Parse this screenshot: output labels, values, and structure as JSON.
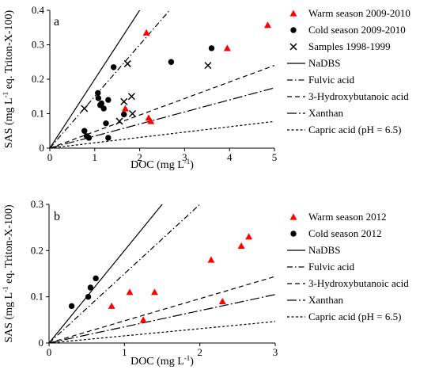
{
  "chart_data": [
    {
      "panel": "a",
      "type": "scatter",
      "xlabel": "DOC (mg L-1)",
      "ylabel": "SAS (mg L-1 eq. Triton-X-100)",
      "xlim": [
        0,
        5
      ],
      "ylim": [
        0,
        0.4
      ],
      "xticks": [
        "0",
        "1",
        "2",
        "3",
        "4",
        "5"
      ],
      "yticks": [
        "0",
        "0.1",
        "0.2",
        "0.3",
        "0.4"
      ],
      "grid": false,
      "legend_placement": "right",
      "points": [
        {
          "name": "Warm season 2009-2010",
          "marker": "triangle",
          "color": "#ff0000",
          "x": [
            1.68,
            2.15,
            2.2,
            2.25,
            3.95,
            4.85
          ],
          "y": [
            0.115,
            0.335,
            0.088,
            0.078,
            0.29,
            0.357
          ]
        },
        {
          "name": "Cold season 2009-2010",
          "marker": "circle",
          "color": "#000000",
          "x": [
            0.77,
            0.82,
            0.87,
            1.07,
            1.08,
            1.12,
            1.15,
            1.2,
            1.25,
            1.3,
            1.3,
            1.42,
            1.65,
            2.7,
            3.6
          ],
          "y": [
            0.05,
            0.035,
            0.03,
            0.16,
            0.145,
            0.125,
            0.13,
            0.115,
            0.072,
            0.14,
            0.03,
            0.235,
            0.098,
            0.25,
            0.29
          ]
        },
        {
          "name": "Samples 1998-1999",
          "marker": "x",
          "color": "#000000",
          "x": [
            0.77,
            1.55,
            1.65,
            1.73,
            1.82,
            1.84,
            3.52
          ],
          "y": [
            0.115,
            0.078,
            0.135,
            0.245,
            0.15,
            0.1,
            0.24
          ]
        }
      ],
      "lines": [
        {
          "name": "NaDBS",
          "dash": "solid",
          "slope": 0.2
        },
        {
          "name": "Fulvic acid",
          "dash": "dashdot",
          "slope": 0.15
        },
        {
          "name": "3-Hydroxybutanoic acid",
          "dash": "dashed",
          "slope": 0.048
        },
        {
          "name": "Xanthan",
          "dash": "longdashdot",
          "slope": 0.035
        },
        {
          "name": "Capric acid (pH = 6.5)",
          "dash": "shortdash",
          "slope": 0.0155
        }
      ]
    },
    {
      "panel": "b",
      "type": "scatter",
      "xlabel": "DOC (mg L-1)",
      "ylabel": "SAS (mg L-1 eq. Triton-X-100)",
      "xlim": [
        0,
        3
      ],
      "ylim": [
        0,
        0.3
      ],
      "xticks": [
        "0",
        "1",
        "2",
        "3"
      ],
      "yticks": [
        "0",
        "0.1",
        "0.2",
        "0.3"
      ],
      "grid": false,
      "legend_placement": "right",
      "points": [
        {
          "name": "Warm season 2012",
          "marker": "triangle",
          "color": "#ff0000",
          "x": [
            0.83,
            1.07,
            1.25,
            1.4,
            2.15,
            2.3,
            2.55,
            2.65
          ],
          "y": [
            0.08,
            0.11,
            0.05,
            0.11,
            0.18,
            0.09,
            0.21,
            0.23
          ]
        },
        {
          "name": "Cold season 2012",
          "marker": "circle",
          "color": "#000000",
          "x": [
            0.3,
            0.52,
            0.55,
            0.62
          ],
          "y": [
            0.08,
            0.1,
            0.12,
            0.14
          ]
        }
      ],
      "lines": [
        {
          "name": "NaDBS",
          "dash": "solid",
          "slope": 0.2
        },
        {
          "name": "Fulvic acid",
          "dash": "dashdot",
          "slope": 0.15
        },
        {
          "name": "3-Hydroxybutanoic acid",
          "dash": "dashed",
          "slope": 0.048
        },
        {
          "name": "Xanthan",
          "dash": "longdashdot",
          "slope": 0.035
        },
        {
          "name": "Capric acid (pH = 6.5)",
          "dash": "shortdash",
          "slope": 0.0155
        }
      ]
    }
  ]
}
